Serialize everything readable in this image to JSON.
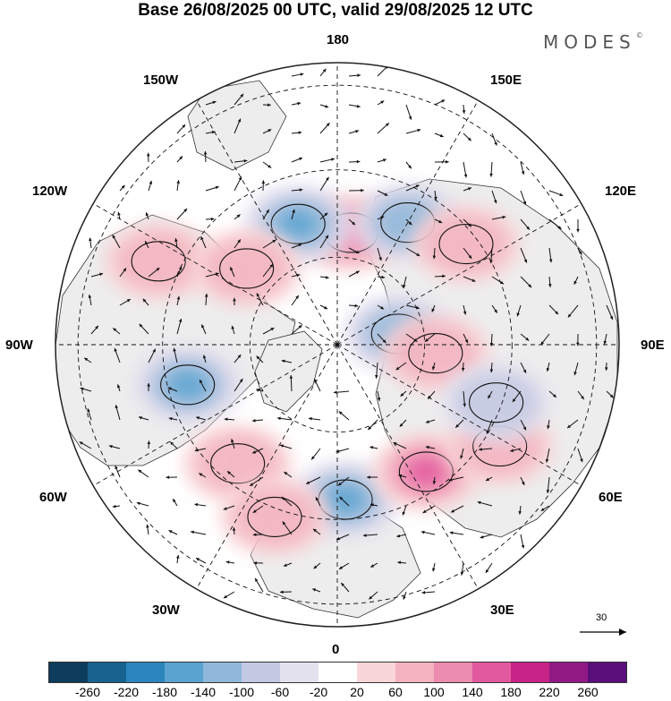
{
  "title": "Base 26/08/2025 00 UTC, valid 29/08/2025 12 UTC",
  "brand": "MODES",
  "brand_mark": "©",
  "longitude_labels": {
    "top": "180",
    "bottom": "0",
    "left": "90W",
    "right": "90E",
    "upper_left_150": "150W",
    "upper_right_150": "150E",
    "upper_left_120": "120W",
    "upper_right_120": "120E",
    "lower_left_60": "60W",
    "lower_right_60": "60E",
    "lower_left_30": "30W",
    "lower_right_30": "30E"
  },
  "wind_scale": "30",
  "colorbar": {
    "colors": [
      "#0d3c5c",
      "#17628f",
      "#2c85bd",
      "#5aa3d0",
      "#90b8da",
      "#c3c9e2",
      "#e4e1ef",
      "#ffffff",
      "#f9d7d8",
      "#f3b3bf",
      "#ec8cb1",
      "#e3599f",
      "#c82389",
      "#911a84",
      "#5a0f7a"
    ],
    "ticks": [
      "-260",
      "-220",
      "-180",
      "-140",
      "-100",
      "-60",
      "-20",
      "20",
      "60",
      "100",
      "140",
      "180",
      "220",
      "260"
    ]
  },
  "anomalies": [
    {
      "lon": 173,
      "r_frac": 0.4,
      "sign": 1,
      "strength": 2
    },
    {
      "lon": -162,
      "r_frac": 0.45,
      "sign": -1,
      "strength": 3
    },
    {
      "lon": 150,
      "r_frac": 0.5,
      "sign": -1,
      "strength": 2
    },
    {
      "lon": 128,
      "r_frac": 0.58,
      "sign": 1,
      "strength": 1
    },
    {
      "lon": -115,
      "r_frac": 0.7,
      "sign": 1,
      "strength": 1
    },
    {
      "lon": -130,
      "r_frac": 0.42,
      "sign": 1,
      "strength": 1
    },
    {
      "lon": 100,
      "r_frac": 0.22,
      "sign": -1,
      "strength": 2
    },
    {
      "lon": 85,
      "r_frac": 0.35,
      "sign": 1,
      "strength": 1
    },
    {
      "lon": -75,
      "r_frac": 0.55,
      "sign": -1,
      "strength": 3
    },
    {
      "lon": -40,
      "r_frac": 0.55,
      "sign": 1,
      "strength": 1
    },
    {
      "lon": 3,
      "r_frac": 0.55,
      "sign": -1,
      "strength": 3
    },
    {
      "lon": 35,
      "r_frac": 0.55,
      "sign": 1,
      "strength": 3
    },
    {
      "lon": 58,
      "r_frac": 0.68,
      "sign": 1,
      "strength": 1
    },
    {
      "lon": 70,
      "r_frac": 0.6,
      "sign": -1,
      "strength": 1
    },
    {
      "lon": -20,
      "r_frac": 0.65,
      "sign": 1,
      "strength": 1
    }
  ]
}
